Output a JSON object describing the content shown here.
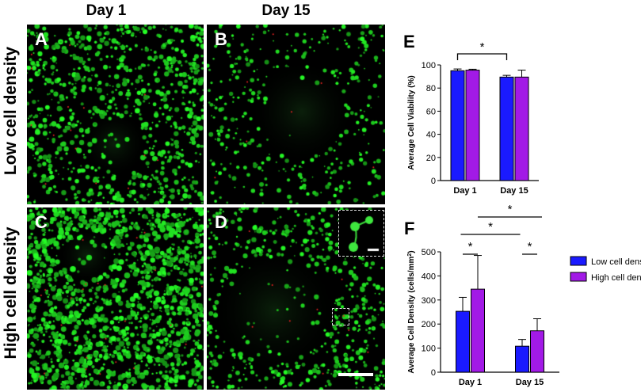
{
  "figure": {
    "col_headers": [
      "Day 1",
      "Day 15"
    ],
    "row_headers": [
      "Low cell density",
      "High cell density"
    ],
    "panels": [
      {
        "label": "A",
        "density": "low",
        "day": 1
      },
      {
        "label": "B",
        "density": "low",
        "day": 15
      },
      {
        "label": "C",
        "density": "high",
        "day": 1
      },
      {
        "label": "D",
        "density": "high",
        "day": 15
      }
    ],
    "colors": {
      "live_cells": "#22dd22",
      "dead_cells": "#ee2222",
      "background": "#000000"
    }
  },
  "chart_data": [
    {
      "panel_label": "E",
      "type": "bar",
      "categories": [
        "Day 1",
        "Day 15"
      ],
      "series": [
        {
          "values": [
            95,
            89.5
          ],
          "errors": [
            1.5,
            1.5
          ],
          "color": "#1a1aff"
        },
        {
          "values": [
            95.5,
            89.5
          ],
          "errors": [
            0.8,
            6
          ],
          "color": "#a21ae6"
        }
      ],
      "ylabel": "Average Cell Viability (%)",
      "ylim": [
        0,
        100
      ],
      "yticks": [
        0,
        20,
        40,
        60,
        80,
        100
      ],
      "significance": [
        {
          "from": "Day 1 low",
          "to": "Day 15 low",
          "label": "*"
        }
      ]
    },
    {
      "panel_label": "F",
      "type": "bar",
      "categories": [
        "Day 1",
        "Day 15"
      ],
      "series": [
        {
          "name": "Low cell density",
          "values": [
            253,
            108
          ],
          "errors": [
            58,
            28
          ],
          "color": "#1a1aff"
        },
        {
          "name": "High cell density",
          "values": [
            345,
            172
          ],
          "errors": [
            140,
            50
          ],
          "color": "#a21ae6"
        }
      ],
      "ylabel": "Average Cell Density (cells/mm",
      "ylabel_sup": "2",
      "ylabel_end": ")",
      "ylim": [
        0,
        500
      ],
      "yticks": [
        0,
        100,
        200,
        300,
        400,
        500
      ],
      "legend_position": "top-right",
      "significance": [
        {
          "from": "Day 1 low",
          "to": "Day 1 high",
          "label": "*"
        },
        {
          "from": "Day 15 low",
          "to": "Day 15 high",
          "label": "*"
        },
        {
          "from": "Day 1 center",
          "to": "Day 15 center",
          "label": "*"
        },
        {
          "from": "Day 1 high",
          "to": "Day 15 high",
          "label": "*"
        }
      ]
    }
  ]
}
